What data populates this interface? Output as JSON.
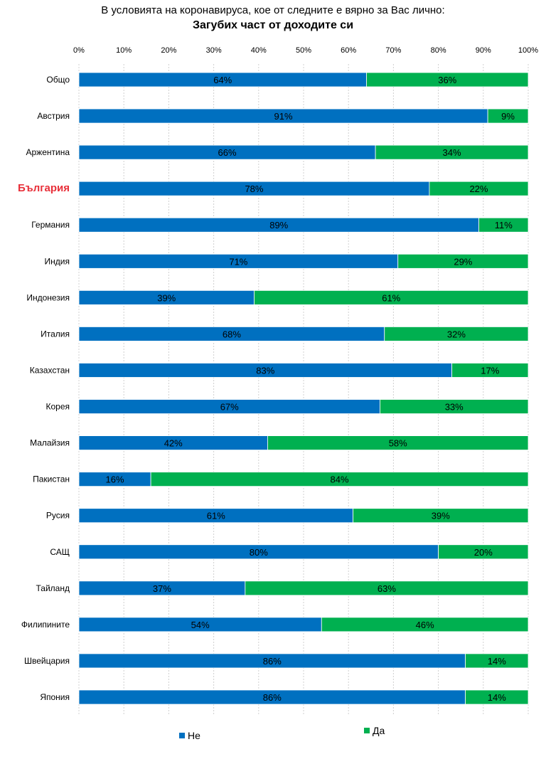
{
  "chart_data": {
    "type": "bar",
    "orientation": "horizontal",
    "stacked": true,
    "title": "В условията на коронавируса, кое от следните е вярно за Вас лично:",
    "subtitle": "Загубих част от доходите си",
    "categories": [
      "Общо",
      "Австрия",
      "Аржентина",
      "България",
      "Германия",
      "Индия",
      "Индонезия",
      "Италия",
      "Казахстан",
      "Корея",
      "Малайзия",
      "Пакистан",
      "Русия",
      "САЩ",
      "Тайланд",
      "Филипините",
      "Швейцария",
      "Япония"
    ],
    "highlight_category": "България",
    "highlight_color": "#e8303a",
    "series": [
      {
        "name": "Не",
        "color": "#0070c0",
        "values": [
          64,
          91,
          66,
          78,
          89,
          71,
          39,
          68,
          83,
          67,
          42,
          16,
          61,
          80,
          37,
          54,
          86,
          86
        ]
      },
      {
        "name": "Да",
        "color": "#00b050",
        "values": [
          36,
          9,
          34,
          22,
          11,
          29,
          61,
          32,
          17,
          33,
          58,
          84,
          39,
          20,
          63,
          46,
          14,
          14
        ]
      }
    ],
    "value_suffix": "%",
    "xlim": [
      0,
      100
    ],
    "xticks": [
      "0%",
      "10%",
      "20%",
      "30%",
      "40%",
      "50%",
      "60%",
      "70%",
      "80%",
      "90%",
      "100%"
    ],
    "axis_position": "top",
    "grid": true,
    "legend": "bottom"
  }
}
